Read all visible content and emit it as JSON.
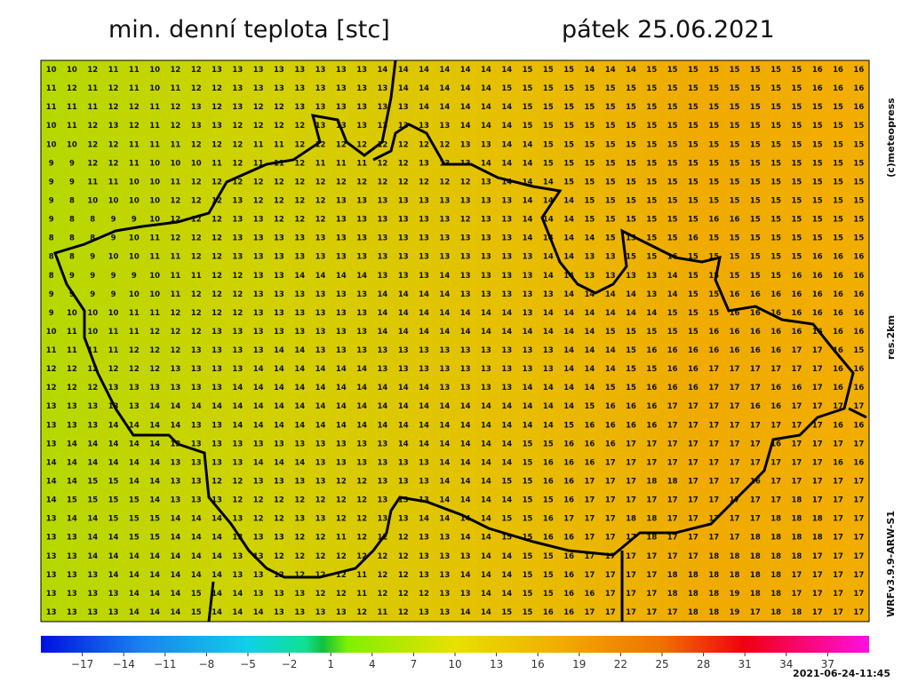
{
  "header": {
    "title": "min. denní teplota [stc]",
    "date": "pátek 25.06.2021"
  },
  "side": {
    "copyright": "(c)meteopress",
    "resolution": "res.2km",
    "model": "WRFv3.9.9-ARW-S1"
  },
  "timestamp": "2021-06-24-11:45",
  "colorbar": {
    "lim": [
      -20,
      40
    ],
    "ticks": [
      {
        "value": -17,
        "label": "−17"
      },
      {
        "value": -14,
        "label": "−14"
      },
      {
        "value": -11,
        "label": "−11"
      },
      {
        "value": -8,
        "label": "−8"
      },
      {
        "value": -5,
        "label": "−5"
      },
      {
        "value": -2,
        "label": "−2"
      },
      1,
      4,
      7,
      10,
      13,
      16,
      19,
      22,
      25,
      28,
      31,
      34,
      37
    ]
  },
  "grid": {
    "rows": [
      [
        10,
        10,
        12,
        11,
        11,
        10,
        12,
        12,
        13,
        13,
        13,
        13,
        13,
        13,
        13,
        13,
        14,
        14,
        14,
        14,
        14,
        14,
        14,
        15,
        15,
        15,
        14,
        14,
        14,
        15,
        15,
        15,
        15,
        15,
        15,
        15,
        15,
        16,
        16,
        16
      ],
      [
        11,
        12,
        11,
        12,
        11,
        10,
        11,
        12,
        12,
        13,
        13,
        13,
        13,
        13,
        13,
        13,
        13,
        14,
        14,
        14,
        14,
        14,
        15,
        15,
        15,
        15,
        15,
        15,
        15,
        15,
        15,
        15,
        15,
        15,
        15,
        15,
        15,
        16,
        16,
        16
      ],
      [
        11,
        11,
        11,
        12,
        12,
        11,
        12,
        13,
        12,
        13,
        12,
        12,
        13,
        13,
        13,
        13,
        13,
        13,
        14,
        14,
        14,
        14,
        14,
        15,
        15,
        15,
        15,
        15,
        15,
        15,
        15,
        15,
        15,
        15,
        15,
        15,
        15,
        15,
        15,
        16
      ],
      [
        10,
        11,
        12,
        13,
        12,
        11,
        12,
        13,
        13,
        12,
        12,
        12,
        12,
        13,
        13,
        13,
        13,
        13,
        13,
        13,
        14,
        14,
        14,
        15,
        15,
        15,
        15,
        15,
        15,
        15,
        15,
        15,
        15,
        15,
        15,
        15,
        15,
        15,
        15,
        15
      ],
      [
        10,
        10,
        12,
        12,
        11,
        11,
        11,
        12,
        12,
        12,
        11,
        11,
        12,
        12,
        12,
        12,
        12,
        12,
        12,
        12,
        13,
        13,
        14,
        14,
        15,
        15,
        15,
        15,
        15,
        15,
        15,
        15,
        15,
        15,
        15,
        15,
        15,
        15,
        15,
        15
      ],
      [
        9,
        9,
        12,
        12,
        11,
        10,
        10,
        10,
        11,
        12,
        11,
        11,
        12,
        11,
        11,
        11,
        12,
        12,
        13,
        13,
        13,
        14,
        14,
        14,
        15,
        15,
        15,
        15,
        15,
        15,
        15,
        15,
        15,
        15,
        15,
        15,
        15,
        15,
        15,
        15
      ],
      [
        9,
        9,
        11,
        11,
        10,
        10,
        11,
        12,
        12,
        12,
        12,
        12,
        12,
        12,
        12,
        12,
        12,
        12,
        12,
        12,
        12,
        13,
        14,
        14,
        14,
        15,
        15,
        15,
        15,
        15,
        15,
        15,
        15,
        15,
        15,
        15,
        15,
        15,
        15,
        15
      ],
      [
        9,
        8,
        10,
        10,
        10,
        10,
        12,
        12,
        12,
        13,
        12,
        12,
        12,
        12,
        13,
        13,
        13,
        13,
        13,
        13,
        13,
        13,
        13,
        14,
        14,
        14,
        15,
        15,
        15,
        15,
        15,
        15,
        15,
        15,
        15,
        15,
        15,
        15,
        15,
        15
      ],
      [
        9,
        8,
        8,
        9,
        9,
        10,
        12,
        12,
        12,
        13,
        13,
        12,
        12,
        12,
        13,
        13,
        13,
        13,
        13,
        13,
        12,
        13,
        13,
        14,
        14,
        14,
        15,
        15,
        15,
        15,
        15,
        15,
        16,
        16,
        15,
        15,
        15,
        15,
        15,
        15
      ],
      [
        8,
        8,
        8,
        9,
        10,
        11,
        12,
        12,
        12,
        13,
        13,
        13,
        13,
        13,
        13,
        13,
        13,
        13,
        13,
        13,
        13,
        13,
        13,
        14,
        14,
        14,
        14,
        15,
        15,
        15,
        15,
        16,
        15,
        15,
        15,
        15,
        15,
        15,
        15,
        15
      ],
      [
        8,
        8,
        9,
        10,
        10,
        11,
        11,
        12,
        12,
        13,
        13,
        13,
        13,
        13,
        13,
        13,
        13,
        13,
        13,
        13,
        13,
        13,
        13,
        13,
        14,
        14,
        13,
        13,
        15,
        15,
        16,
        15,
        15,
        15,
        15,
        15,
        15,
        16,
        16,
        16
      ],
      [
        8,
        9,
        9,
        9,
        9,
        10,
        11,
        11,
        12,
        12,
        13,
        13,
        14,
        14,
        14,
        14,
        13,
        13,
        13,
        14,
        13,
        13,
        13,
        13,
        14,
        14,
        13,
        13,
        13,
        13,
        14,
        15,
        15,
        15,
        15,
        15,
        16,
        16,
        16,
        16
      ],
      [
        9,
        9,
        9,
        9,
        10,
        10,
        11,
        12,
        12,
        12,
        13,
        13,
        13,
        13,
        13,
        13,
        14,
        14,
        14,
        14,
        13,
        13,
        13,
        13,
        13,
        14,
        14,
        14,
        14,
        13,
        14,
        15,
        15,
        16,
        16,
        16,
        16,
        16,
        16,
        16
      ],
      [
        9,
        10,
        10,
        10,
        11,
        11,
        12,
        12,
        12,
        12,
        13,
        13,
        13,
        13,
        13,
        13,
        14,
        14,
        14,
        14,
        14,
        14,
        14,
        13,
        14,
        14,
        14,
        14,
        14,
        14,
        15,
        15,
        15,
        16,
        16,
        16,
        16,
        16,
        16,
        16
      ],
      [
        10,
        11,
        10,
        11,
        11,
        12,
        12,
        12,
        13,
        13,
        13,
        13,
        13,
        13,
        13,
        13,
        14,
        14,
        14,
        14,
        14,
        14,
        14,
        14,
        14,
        14,
        14,
        15,
        15,
        15,
        15,
        15,
        16,
        16,
        16,
        16,
        16,
        16,
        16,
        16
      ],
      [
        11,
        11,
        11,
        11,
        12,
        12,
        12,
        13,
        13,
        13,
        13,
        14,
        14,
        13,
        13,
        13,
        13,
        13,
        13,
        13,
        13,
        13,
        13,
        13,
        13,
        14,
        14,
        14,
        15,
        16,
        16,
        16,
        16,
        16,
        16,
        16,
        17,
        17,
        16,
        15
      ],
      [
        12,
        12,
        12,
        12,
        12,
        12,
        13,
        13,
        13,
        13,
        14,
        14,
        14,
        14,
        14,
        14,
        13,
        13,
        13,
        13,
        13,
        13,
        13,
        13,
        13,
        14,
        14,
        14,
        15,
        15,
        16,
        16,
        17,
        17,
        17,
        17,
        17,
        17,
        16,
        16
      ],
      [
        12,
        12,
        12,
        13,
        13,
        13,
        13,
        13,
        13,
        14,
        14,
        14,
        14,
        14,
        14,
        14,
        14,
        14,
        14,
        13,
        13,
        13,
        13,
        14,
        14,
        14,
        14,
        15,
        15,
        16,
        16,
        16,
        17,
        17,
        17,
        16,
        16,
        17,
        16,
        16
      ],
      [
        13,
        13,
        13,
        13,
        13,
        14,
        14,
        14,
        14,
        14,
        14,
        14,
        14,
        14,
        14,
        14,
        14,
        14,
        14,
        14,
        14,
        14,
        14,
        14,
        14,
        14,
        15,
        16,
        16,
        16,
        17,
        17,
        17,
        17,
        16,
        16,
        17,
        17,
        17,
        17
      ],
      [
        13,
        13,
        13,
        14,
        14,
        14,
        14,
        13,
        13,
        14,
        14,
        14,
        14,
        14,
        14,
        14,
        14,
        14,
        14,
        14,
        14,
        14,
        14,
        14,
        14,
        15,
        16,
        16,
        16,
        16,
        17,
        17,
        17,
        17,
        17,
        17,
        17,
        17,
        16,
        16
      ],
      [
        13,
        14,
        14,
        14,
        14,
        14,
        13,
        13,
        13,
        13,
        13,
        13,
        13,
        13,
        13,
        13,
        13,
        14,
        14,
        14,
        14,
        14,
        14,
        15,
        15,
        16,
        16,
        16,
        17,
        17,
        17,
        17,
        17,
        17,
        17,
        16,
        17,
        17,
        17,
        17
      ],
      [
        14,
        14,
        14,
        14,
        14,
        14,
        13,
        13,
        13,
        13,
        14,
        14,
        14,
        13,
        13,
        13,
        13,
        13,
        13,
        14,
        14,
        14,
        14,
        15,
        16,
        16,
        16,
        17,
        17,
        17,
        17,
        17,
        17,
        17,
        17,
        17,
        17,
        17,
        16,
        16
      ],
      [
        14,
        14,
        15,
        15,
        14,
        14,
        13,
        13,
        12,
        12,
        13,
        13,
        13,
        13,
        12,
        12,
        13,
        13,
        13,
        14,
        14,
        14,
        15,
        15,
        16,
        16,
        17,
        17,
        17,
        18,
        18,
        17,
        17,
        17,
        16,
        17,
        17,
        17,
        17,
        17
      ],
      [
        14,
        15,
        15,
        15,
        15,
        14,
        13,
        13,
        13,
        12,
        12,
        12,
        12,
        12,
        12,
        12,
        13,
        13,
        13,
        14,
        14,
        14,
        14,
        15,
        15,
        16,
        17,
        17,
        17,
        17,
        17,
        17,
        17,
        17,
        17,
        17,
        18,
        17,
        17,
        17
      ],
      [
        13,
        14,
        14,
        15,
        15,
        15,
        14,
        14,
        14,
        13,
        12,
        12,
        13,
        13,
        12,
        12,
        13,
        13,
        14,
        14,
        14,
        14,
        15,
        15,
        16,
        17,
        17,
        17,
        18,
        18,
        17,
        17,
        17,
        17,
        17,
        18,
        18,
        18,
        17,
        17
      ],
      [
        13,
        13,
        14,
        14,
        15,
        15,
        14,
        14,
        14,
        13,
        13,
        13,
        12,
        12,
        11,
        12,
        12,
        12,
        13,
        13,
        14,
        14,
        15,
        15,
        16,
        16,
        17,
        17,
        17,
        18,
        17,
        17,
        17,
        17,
        18,
        18,
        18,
        18,
        17,
        17
      ],
      [
        13,
        13,
        14,
        14,
        14,
        14,
        14,
        14,
        14,
        13,
        13,
        12,
        12,
        12,
        12,
        12,
        12,
        12,
        13,
        13,
        13,
        14,
        14,
        15,
        15,
        16,
        17,
        17,
        17,
        17,
        17,
        17,
        18,
        18,
        18,
        18,
        18,
        17,
        17,
        17
      ],
      [
        13,
        13,
        13,
        14,
        14,
        14,
        14,
        14,
        14,
        13,
        13,
        12,
        12,
        12,
        12,
        11,
        12,
        12,
        13,
        13,
        14,
        14,
        14,
        15,
        15,
        16,
        17,
        17,
        17,
        17,
        18,
        18,
        18,
        18,
        18,
        18,
        17,
        17,
        17,
        17
      ],
      [
        13,
        13,
        13,
        13,
        14,
        14,
        14,
        15,
        14,
        14,
        13,
        13,
        13,
        12,
        12,
        11,
        12,
        12,
        12,
        13,
        13,
        14,
        14,
        15,
        15,
        16,
        16,
        17,
        17,
        17,
        18,
        18,
        18,
        19,
        18,
        18,
        17,
        17,
        17,
        17
      ],
      [
        13,
        13,
        13,
        13,
        14,
        14,
        14,
        15,
        14,
        14,
        14,
        13,
        13,
        13,
        13,
        12,
        11,
        12,
        13,
        13,
        14,
        14,
        15,
        15,
        16,
        16,
        17,
        17,
        17,
        17,
        17,
        18,
        18,
        19,
        17,
        18,
        18,
        17,
        17,
        17
      ]
    ]
  }
}
